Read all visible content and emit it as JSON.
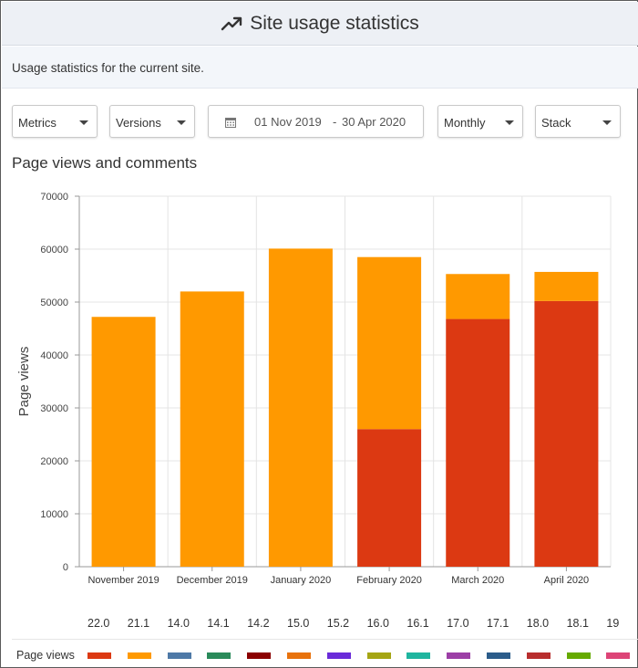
{
  "header": {
    "title": "Site usage statistics",
    "icon": "trending-up-icon"
  },
  "description": "Usage statistics for the current site.",
  "filters": {
    "metrics_label": "Metrics",
    "versions_label": "Versions",
    "date_from": "01 Nov 2019",
    "date_separator": "-",
    "date_to": "30 Apr 2020",
    "interval_label": "Monthly",
    "mode_label": "Stack"
  },
  "chart_title": "Page views and comments",
  "chart_data": {
    "type": "bar",
    "stacked": true,
    "title": "Page views and comments",
    "xlabel": "",
    "ylabel": "Page views",
    "ylim": [
      0,
      70000
    ],
    "yticks": [
      "0",
      "10000",
      "20000",
      "30000",
      "40000",
      "50000",
      "60000",
      "70000"
    ],
    "categories": [
      "November 2019",
      "December 2019",
      "January 2020",
      "February 2020",
      "March 2020",
      "April 2020"
    ],
    "grid": true,
    "series": [
      {
        "color": "#dc3912",
        "values": [
          0,
          0,
          0,
          26000,
          46800,
          50200
        ]
      },
      {
        "color": "#ff9900",
        "values": [
          47200,
          52000,
          60100,
          32500,
          8500,
          5500
        ]
      }
    ]
  },
  "legend": {
    "row_label": "Page views",
    "versions": [
      "22.0",
      "21.1",
      "14.0",
      "14.1",
      "14.2",
      "15.0",
      "15.2",
      "16.0",
      "16.1",
      "17.0",
      "17.1",
      "18.0",
      "18.1",
      "19"
    ],
    "colors": [
      "#dc3912",
      "#ff9900",
      "#4e79a7",
      "#2a8a5a",
      "#8b0000",
      "#e8720c",
      "#6a2bd9",
      "#a5a513",
      "#1fb59f",
      "#9c3fa6",
      "#2b5c8a",
      "#b82e2e",
      "#66aa00",
      "#dd4477"
    ]
  }
}
